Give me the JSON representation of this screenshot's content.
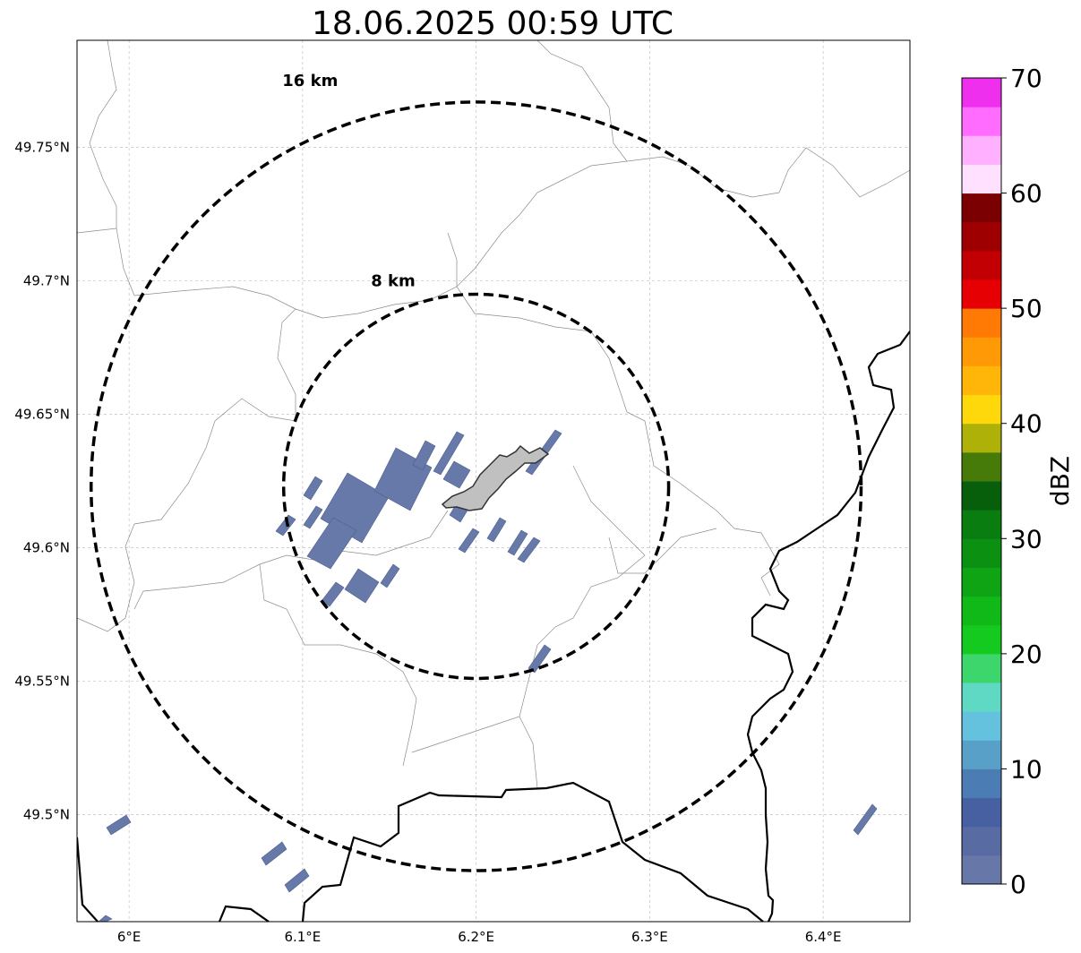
{
  "title": "18.06.2025 00:59 UTC",
  "map": {
    "lon_range": [
      5.97,
      6.45
    ],
    "lat_range": [
      49.46,
      49.79
    ],
    "center": {
      "lon": 6.2,
      "lat": 49.623
    },
    "lon_ticks": [
      {
        "value": 6.0,
        "label": "6°E"
      },
      {
        "value": 6.1,
        "label": "6.1°E"
      },
      {
        "value": 6.2,
        "label": "6.2°E"
      },
      {
        "value": 6.3,
        "label": "6.3°E"
      },
      {
        "value": 6.4,
        "label": "6.4°E"
      }
    ],
    "lat_ticks": [
      {
        "value": 49.5,
        "label": "49.5°N"
      },
      {
        "value": 49.55,
        "label": "49.55°N"
      },
      {
        "value": 49.6,
        "label": "49.6°N"
      },
      {
        "value": 49.65,
        "label": "49.65°N"
      },
      {
        "value": 49.7,
        "label": "49.7°N"
      },
      {
        "value": 49.75,
        "label": "49.75°N"
      }
    ],
    "rings": [
      {
        "radius_km": 8,
        "label": "8 km"
      },
      {
        "radius_km": 16,
        "label": "16 km"
      }
    ],
    "echo_color": "#6779a8",
    "airport_color": "#c0c0c0"
  },
  "colorbar": {
    "label": "dBZ",
    "min": 0,
    "max": 70,
    "tick_values": [
      0,
      10,
      20,
      30,
      40,
      50,
      60,
      70
    ],
    "tick_labels": [
      "0",
      "10",
      "20",
      "30",
      "40",
      "50",
      "60",
      "70"
    ],
    "colors": [
      "#6778a8",
      "#586ca3",
      "#4660a1",
      "#4c7cb4",
      "#58a0c8",
      "#64c2de",
      "#5fd8c4",
      "#3dd66c",
      "#14ca1e",
      "#10b818",
      "#0ea414",
      "#0b9012",
      "#097d10",
      "#075f0c",
      "#467b0a",
      "#aeb208",
      "#fed80a",
      "#ffb608",
      "#ff9a06",
      "#ff7a05",
      "#e60003",
      "#c20003",
      "#9e0002",
      "#7a0001",
      "#ffe0ff",
      "#ffb0ff",
      "#ff6cff",
      "#ee30ee"
    ]
  }
}
